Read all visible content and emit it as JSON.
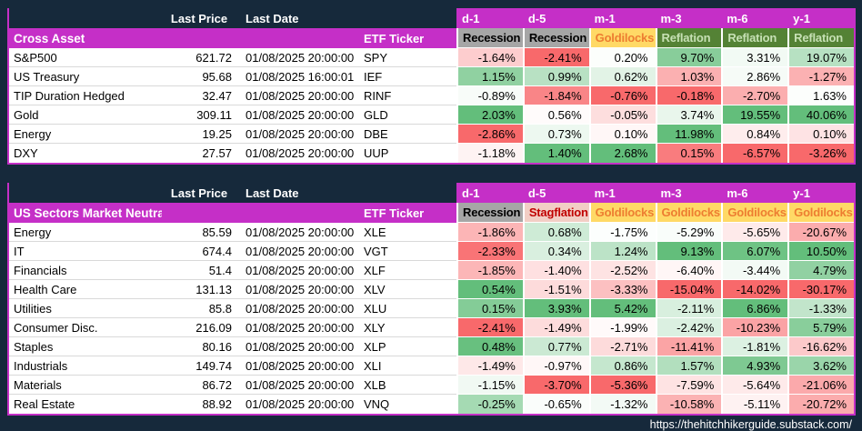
{
  "page": {
    "background": "#16293B",
    "accent_magenta": "#C52FC7",
    "footer_url": "https://thehitchhikerguide.substack.com/"
  },
  "header_labels": {
    "last_price": "Last Price",
    "last_date": "Last Date",
    "etf_ticker": "ETF Ticker"
  },
  "regime_styles": {
    "Recession": {
      "bg": "#A6A6A6",
      "fg": "#000000"
    },
    "Stagflation": {
      "bg": "#F2CEC5",
      "fg": "#C00000"
    },
    "Goldilocks": {
      "bg": "#FFD966",
      "fg": "#ED7D31"
    },
    "Reflation": {
      "bg": "#548235",
      "fg": "#C6E0B4"
    }
  },
  "heatmap_scale": {
    "min_color": "#F8696B",
    "mid_color": "#FFFFFF",
    "max_color": "#63BE7B"
  },
  "chart_data": [
    {
      "type": "heatmap-table",
      "title": "Cross Asset",
      "period_columns": [
        "d-1",
        "d-5",
        "m-1",
        "m-3",
        "m-6",
        "y-1"
      ],
      "regime_row": [
        "Recession",
        "Recession",
        "Goldilocks",
        "Reflation",
        "Reflation",
        "Reflation"
      ],
      "rows": [
        {
          "name": "S&P500",
          "last_price": "621.72",
          "last_date": "01/08/2025 20:00:00",
          "ticker": "SPY",
          "values": [
            -1.64,
            -2.41,
            0.2,
            9.7,
            3.31,
            19.07
          ]
        },
        {
          "name": "US Treasury",
          "last_price": "95.68",
          "last_date": "01/08/2025 16:00:01",
          "ticker": "IEF",
          "values": [
            1.15,
            0.99,
            0.62,
            1.03,
            2.86,
            -1.27
          ]
        },
        {
          "name": "TIP Duration Hedged",
          "last_price": "32.47",
          "last_date": "01/08/2025 20:00:00",
          "ticker": "RINF",
          "values": [
            -0.89,
            -1.84,
            -0.76,
            -0.18,
            -2.7,
            1.63
          ]
        },
        {
          "name": "Gold",
          "last_price": "309.11",
          "last_date": "01/08/2025 20:00:00",
          "ticker": "GLD",
          "values": [
            2.03,
            0.56,
            -0.05,
            3.74,
            19.55,
            40.06
          ]
        },
        {
          "name": "Energy",
          "last_price": "19.25",
          "last_date": "01/08/2025 20:00:00",
          "ticker": "DBE",
          "values": [
            -2.86,
            0.73,
            0.1,
            11.98,
            0.84,
            0.1
          ]
        },
        {
          "name": "DXY",
          "last_price": "27.57",
          "last_date": "01/08/2025 20:00:00",
          "ticker": "UUP",
          "values": [
            -1.18,
            1.4,
            2.68,
            0.15,
            -6.57,
            -3.26
          ]
        }
      ]
    },
    {
      "type": "heatmap-table",
      "title": "US Sectors Market Neutral",
      "period_columns": [
        "d-1",
        "d-5",
        "m-1",
        "m-3",
        "m-6",
        "y-1"
      ],
      "regime_row": [
        "Recession",
        "Stagflation",
        "Goldilocks",
        "Goldilocks",
        "Goldilocks",
        "Goldilocks"
      ],
      "rows": [
        {
          "name": "Energy",
          "last_price": "85.59",
          "last_date": "01/08/2025 20:00:00",
          "ticker": "XLE",
          "values": [
            -1.86,
            0.68,
            -1.75,
            -5.29,
            -5.65,
            -20.67
          ]
        },
        {
          "name": "IT",
          "last_price": "674.4",
          "last_date": "01/08/2025 20:00:00",
          "ticker": "VGT",
          "values": [
            -2.33,
            0.34,
            1.24,
            9.13,
            6.07,
            10.5
          ]
        },
        {
          "name": "Financials",
          "last_price": "51.4",
          "last_date": "01/08/2025 20:00:00",
          "ticker": "XLF",
          "values": [
            -1.85,
            -1.4,
            -2.52,
            -6.4,
            -3.44,
            4.79
          ]
        },
        {
          "name": "Health Care",
          "last_price": "131.13",
          "last_date": "01/08/2025 20:00:00",
          "ticker": "XLV",
          "values": [
            0.54,
            -1.51,
            -3.33,
            -15.04,
            -14.02,
            -30.17
          ]
        },
        {
          "name": "Utilities",
          "last_price": "85.8",
          "last_date": "01/08/2025 20:00:00",
          "ticker": "XLU",
          "values": [
            0.15,
            3.93,
            5.42,
            -2.11,
            6.86,
            -1.33
          ]
        },
        {
          "name": "Consumer Disc.",
          "last_price": "216.09",
          "last_date": "01/08/2025 20:00:00",
          "ticker": "XLY",
          "values": [
            -2.41,
            -1.49,
            -1.99,
            -2.42,
            -10.23,
            5.79
          ]
        },
        {
          "name": "Staples",
          "last_price": "80.16",
          "last_date": "01/08/2025 20:00:00",
          "ticker": "XLP",
          "values": [
            0.48,
            0.77,
            -2.71,
            -11.41,
            -1.81,
            -16.62
          ]
        },
        {
          "name": "Industrials",
          "last_price": "149.74",
          "last_date": "01/08/2025 20:00:00",
          "ticker": "XLI",
          "values": [
            -1.49,
            -0.97,
            0.86,
            1.57,
            4.93,
            3.62
          ]
        },
        {
          "name": "Materials",
          "last_price": "86.72",
          "last_date": "01/08/2025 20:00:00",
          "ticker": "XLB",
          "values": [
            -1.15,
            -3.7,
            -5.36,
            -7.59,
            -5.64,
            -21.06
          ]
        },
        {
          "name": "Real Estate",
          "last_price": "88.92",
          "last_date": "01/08/2025 20:00:00",
          "ticker": "VNQ",
          "values": [
            -0.25,
            -0.65,
            -1.32,
            -10.58,
            -5.11,
            -20.72
          ]
        }
      ]
    }
  ]
}
